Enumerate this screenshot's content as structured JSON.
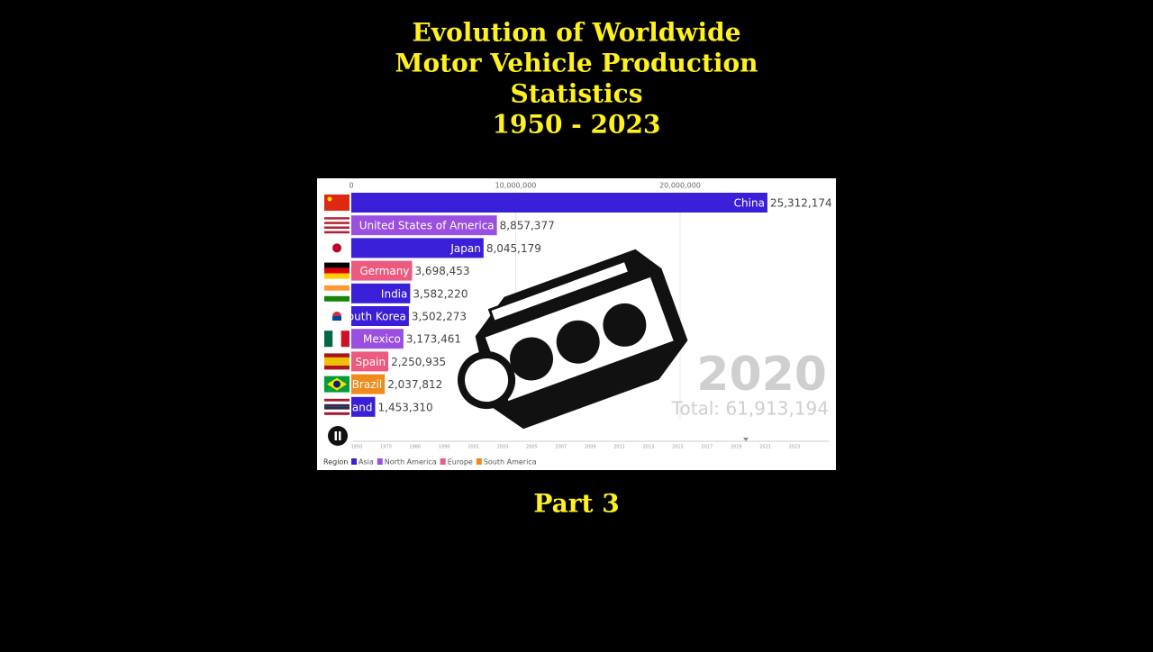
{
  "header": {
    "title": [
      "Evolution of Worldwide",
      "Motor Vehicle Production",
      "Statistics",
      "1950 - 2023"
    ],
    "caption": "Part 3"
  },
  "chart_data": {
    "type": "bar",
    "orientation": "horizontal",
    "categories": [
      "China",
      "United States of America",
      "Japan",
      "Germany",
      "India",
      "South Korea",
      "Mexico",
      "Spain",
      "Brazil",
      "Thailand"
    ],
    "values": [
      25312174,
      8857377,
      8045179,
      3698453,
      3582220,
      3502273,
      3173461,
      2250935,
      2037812,
      1453310
    ],
    "value_labels": [
      "25,312,174",
      "8,857,377",
      "8,045,179",
      "3,698,453",
      "3,582,220",
      "3,502,273",
      "3,173,461",
      "2,250,935",
      "2,037,812",
      "1,453,310"
    ],
    "colors": [
      "#3a1fd8",
      "#9a4fe0",
      "#3a1fd8",
      "#ec5a80",
      "#3a1fd8",
      "#3a1fd8",
      "#9a4fe0",
      "#ec5a80",
      "#f08a1a",
      "#3a1fd8"
    ],
    "xlim": [
      0,
      29000000
    ],
    "xticks": [
      0,
      {
        "value": 10000000,
        "label": "10,000,000"
      },
      {
        "value": 20000000,
        "label": "20,000,000"
      }
    ],
    "grid": true,
    "year": "2020",
    "total": "Total: 61,913,194",
    "timeline": [
      "1950",
      "1970",
      "1980",
      "1990",
      "2001",
      "2003",
      "2005",
      "2007",
      "2009",
      "2011",
      "2013",
      "2015",
      "2017",
      "2019",
      "2021",
      "2023"
    ],
    "legend_title": "Region",
    "legend": [
      {
        "name": "Asia",
        "color": "#3a1fd8"
      },
      {
        "name": "North America",
        "color": "#9a4fe0"
      },
      {
        "name": "Europe",
        "color": "#ec5a80"
      },
      {
        "name": "South America",
        "color": "#f08a1a"
      }
    ]
  }
}
